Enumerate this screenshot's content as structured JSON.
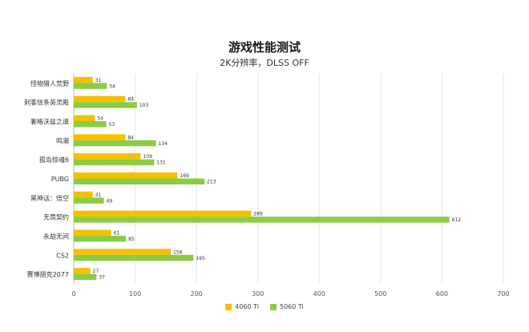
{
  "chart_data": {
    "type": "bar",
    "orientation": "horizontal",
    "title": "游戏性能测试",
    "subtitle": "2K分辨率，DLSS OFF",
    "categories": [
      "怪物猎人荒野",
      "刺客信条英灵殿",
      "奢格沃兹之遗",
      "鸣潮",
      "孤岛惊魂6",
      "PUBG",
      "黑神话：悟空",
      "无畏契约",
      "永劫无间",
      "CS2",
      "赛博朋克2077"
    ],
    "series": [
      {
        "name": "4060 Ti",
        "color": "#f5c000",
        "values": [
          31,
          84,
          34,
          84,
          109,
          169,
          31,
          289,
          61,
          158,
          27
        ]
      },
      {
        "name": "5060 Ti",
        "color": "#8ccc45",
        "values": [
          54,
          103,
          53,
          134,
          131,
          213,
          49,
          612,
          85,
          195,
          37
        ]
      }
    ],
    "xlim": [
      0,
      700
    ],
    "xticks": [
      0,
      100,
      200,
      300,
      400,
      500,
      600,
      700
    ],
    "grid": true,
    "legend_position": "bottom"
  }
}
